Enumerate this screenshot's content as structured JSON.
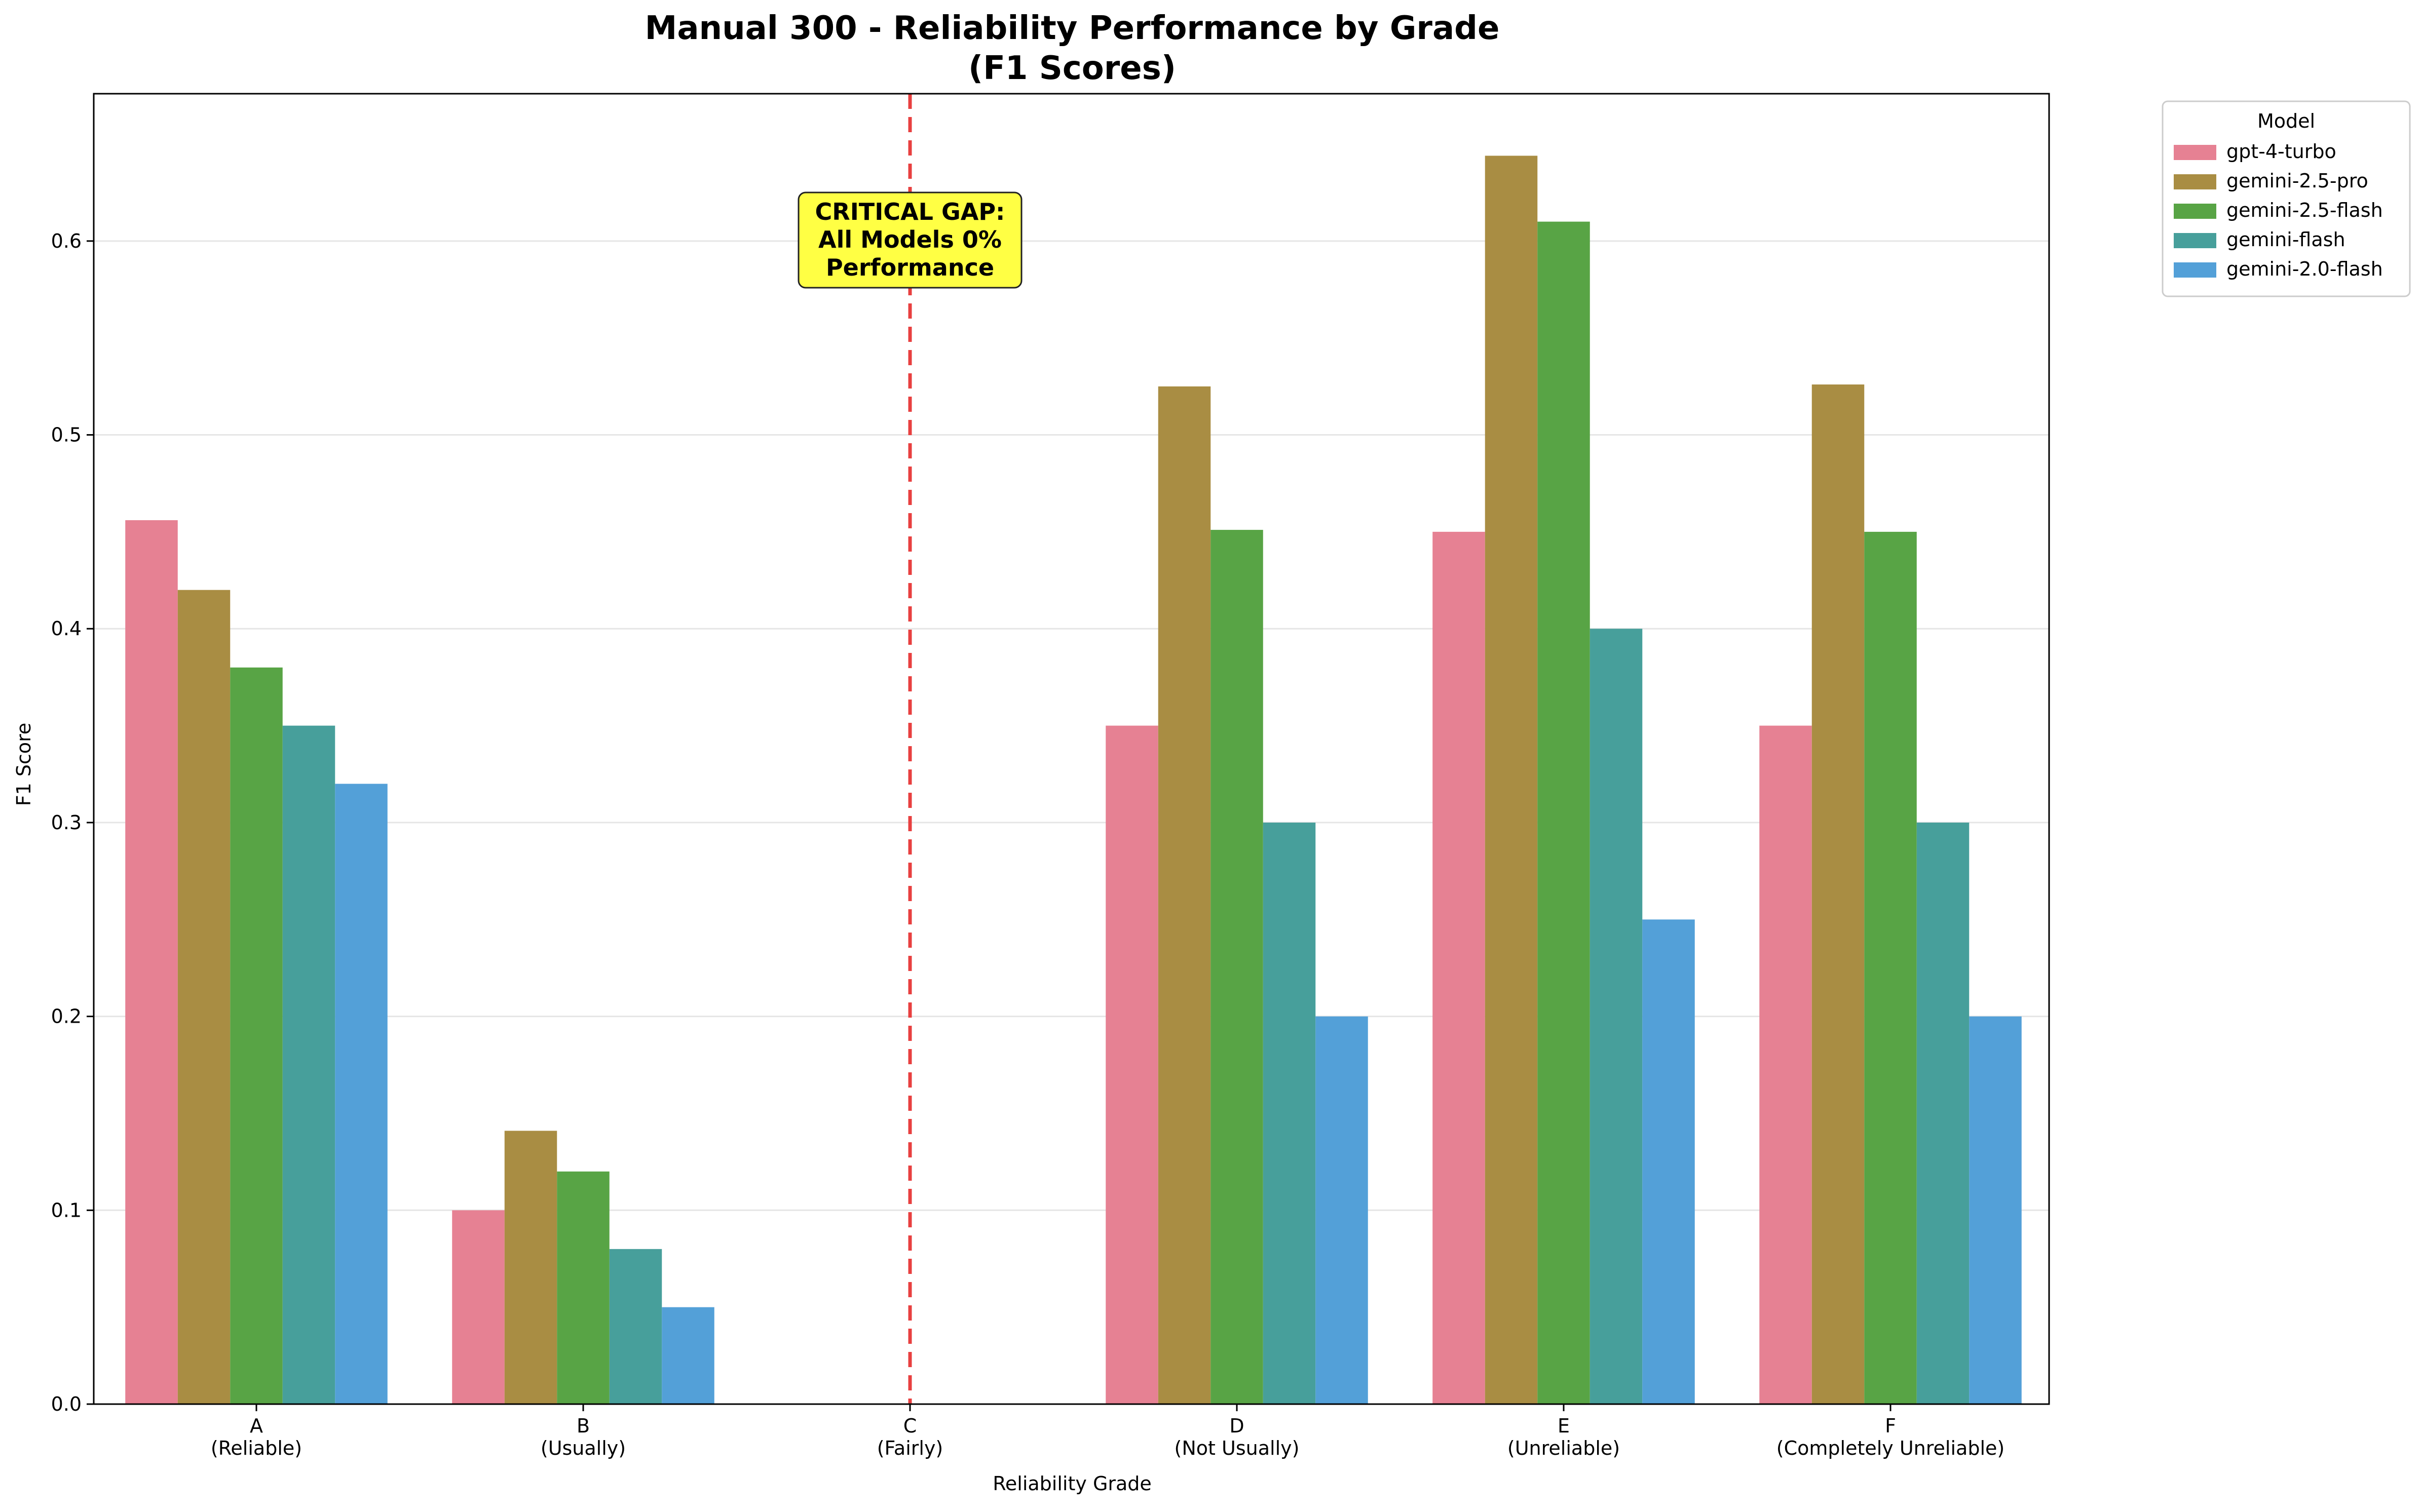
{
  "chart_data": {
    "type": "bar",
    "title_line1": "Manual 300 - Reliability Performance by Grade",
    "title_line2": "(F1 Scores)",
    "xlabel": "Reliability Grade",
    "ylabel": "F1 Score",
    "ylim": [
      0,
      0.676
    ],
    "yticks": [
      "0.0",
      "0.1",
      "0.2",
      "0.3",
      "0.4",
      "0.5",
      "0.6"
    ],
    "grid": "horizontal",
    "legend_title": "Model",
    "legend_placement": "outside top-right",
    "categories": [
      {
        "grade": "A",
        "desc": "(Reliable)"
      },
      {
        "grade": "B",
        "desc": "(Usually)"
      },
      {
        "grade": "C",
        "desc": "(Fairly)"
      },
      {
        "grade": "D",
        "desc": "(Not Usually)"
      },
      {
        "grade": "E",
        "desc": "(Unreliable)"
      },
      {
        "grade": "F",
        "desc": "(Completely Unreliable)"
      }
    ],
    "series": [
      {
        "name": "gpt-4-turbo",
        "color": "#e68193",
        "values": [
          0.456,
          0.1,
          0.0,
          0.35,
          0.45,
          0.35
        ]
      },
      {
        "name": "gemini-2.5-pro",
        "color": "#a98d43",
        "values": [
          0.42,
          0.141,
          0.0,
          0.525,
          0.644,
          0.526
        ]
      },
      {
        "name": "gemini-2.5-flash",
        "color": "#58a445",
        "values": [
          0.38,
          0.12,
          0.0,
          0.451,
          0.61,
          0.45
        ]
      },
      {
        "name": "gemini-flash",
        "color": "#479f9b",
        "values": [
          0.35,
          0.08,
          0.0,
          0.3,
          0.4,
          0.3
        ]
      },
      {
        "name": "gemini-2.0-flash",
        "color": "#53a0d8",
        "values": [
          0.32,
          0.05,
          0.0,
          0.2,
          0.25,
          0.2
        ]
      }
    ],
    "annotation": {
      "line1": "CRITICAL GAP:",
      "line2": "All Models 0%",
      "line3": "Performance",
      "box_color": "#ffff44",
      "line_color": "#e84040",
      "at_category": "C"
    }
  }
}
